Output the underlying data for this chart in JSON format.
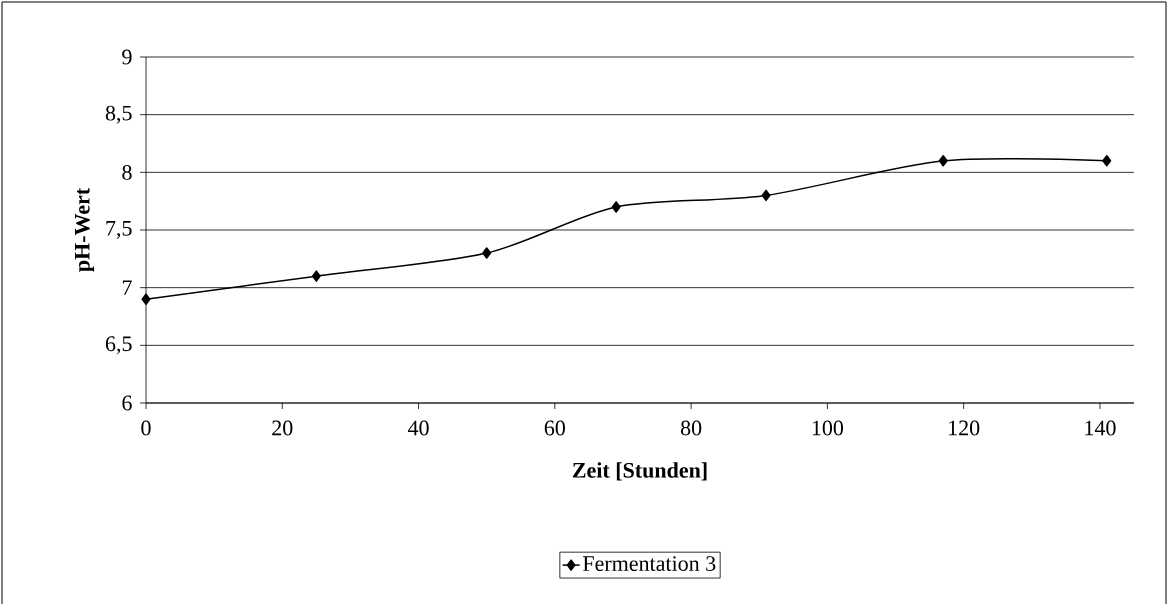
{
  "chart_data": {
    "type": "line",
    "xlabel": "Zeit [Stunden]",
    "ylabel": "pH-Wert",
    "x": [
      0,
      25,
      50,
      69,
      91,
      117,
      141
    ],
    "series": [
      {
        "name": "Fermentation 3",
        "color": "#000000",
        "values": [
          6.9,
          7.1,
          7.3,
          7.7,
          7.8,
          8.1,
          8.1
        ]
      }
    ],
    "xlim": [
      0,
      145
    ],
    "ylim": [
      6,
      9
    ],
    "xticks": [
      0,
      20,
      40,
      60,
      80,
      100,
      120,
      140
    ],
    "yticks": [
      6,
      {
        "value": 6.5,
        "label": "6,5"
      },
      7,
      {
        "value": 7.5,
        "label": "7,5"
      },
      8,
      {
        "value": 8.5,
        "label": "8,5"
      },
      9
    ],
    "grid": "y",
    "legend": "bottom",
    "marker": "diamond",
    "line_style": "solid"
  }
}
